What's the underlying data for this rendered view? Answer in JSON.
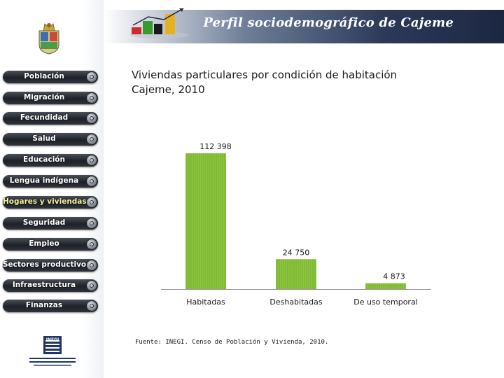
{
  "header": {
    "title": "Perfil sociodemográfico de Cajeme",
    "logo_icon": "bar-chart-logo-icon",
    "colors": {
      "band_dark": "#1c2742",
      "logo_red": "#cc2b2b",
      "logo_green": "#3a9a2e",
      "logo_yellow": "#e8b020"
    }
  },
  "sidebar": {
    "crest_icon": "municipal-crest-icon",
    "items": [
      {
        "label": "Población",
        "active": false
      },
      {
        "label": "Migración",
        "active": false
      },
      {
        "label": "Fecundidad",
        "active": false
      },
      {
        "label": "Salud",
        "active": false
      },
      {
        "label": "Educación",
        "active": false
      },
      {
        "label": "Lengua indígena",
        "active": false
      },
      {
        "label": "Hogares y viviendas",
        "active": true
      },
      {
        "label": "Seguridad",
        "active": false
      },
      {
        "label": "Empleo",
        "active": false
      },
      {
        "label": "Sectores productivos",
        "active": false
      },
      {
        "label": "Infraestructura",
        "active": false
      },
      {
        "label": "Finanzas",
        "active": false
      }
    ],
    "footer_logo": {
      "icon": "inegi-logo-icon",
      "text": "INEGI"
    }
  },
  "chart_data": {
    "type": "bar",
    "title": "Viviendas particulares por condición de habitación",
    "subtitle": "Cajeme, 2010",
    "categories": [
      "Habitadas",
      "Deshabitadas",
      "De uso temporal"
    ],
    "values": [
      112398,
      24750,
      4873
    ],
    "data_labels": [
      "112 398",
      "24 750",
      "4 873"
    ],
    "ylim": [
      0,
      112398
    ],
    "grid": false,
    "legend": "none",
    "bar_color": "#8dc63f",
    "source": "Fuente: INEGI. Censo de Población y Vivienda, 2010."
  }
}
